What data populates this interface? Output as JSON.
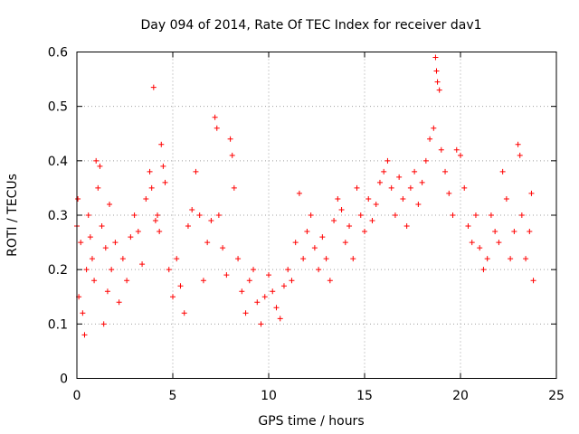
{
  "chart_data": {
    "type": "scatter",
    "title": "Day 094 of 2014, Rate Of TEC Index for receiver dav1",
    "xlabel": "GPS time / hours",
    "ylabel": "ROTI / TECUs",
    "xlim": [
      0,
      25
    ],
    "ylim": [
      0,
      0.6
    ],
    "xticks": [
      0,
      5,
      10,
      15,
      20,
      25
    ],
    "yticks": [
      0,
      0.1,
      0.2,
      0.3,
      0.4,
      0.5,
      0.6
    ],
    "xtick_labels": [
      "0",
      "5",
      "10",
      "15",
      "20",
      "25"
    ],
    "ytick_labels": [
      "0",
      "0.1",
      "0.2",
      "0.3",
      "0.4",
      "0.5",
      "0.6"
    ],
    "grid": true,
    "marker": "+",
    "series": [
      {
        "name": "dav1",
        "color": "#ff0000",
        "points": [
          [
            0.0,
            0.28
          ],
          [
            0.05,
            0.33
          ],
          [
            0.1,
            0.15
          ],
          [
            0.2,
            0.25
          ],
          [
            0.3,
            0.12
          ],
          [
            0.4,
            0.08
          ],
          [
            0.5,
            0.2
          ],
          [
            0.6,
            0.3
          ],
          [
            0.7,
            0.26
          ],
          [
            0.8,
            0.22
          ],
          [
            0.9,
            0.18
          ],
          [
            1.0,
            0.4
          ],
          [
            1.1,
            0.35
          ],
          [
            1.2,
            0.39
          ],
          [
            1.3,
            0.28
          ],
          [
            1.4,
            0.1
          ],
          [
            1.5,
            0.24
          ],
          [
            1.6,
            0.16
          ],
          [
            1.7,
            0.32
          ],
          [
            1.8,
            0.2
          ],
          [
            2.0,
            0.25
          ],
          [
            2.2,
            0.14
          ],
          [
            2.4,
            0.22
          ],
          [
            2.6,
            0.18
          ],
          [
            2.8,
            0.26
          ],
          [
            3.0,
            0.3
          ],
          [
            3.2,
            0.27
          ],
          [
            3.4,
            0.21
          ],
          [
            3.6,
            0.33
          ],
          [
            3.8,
            0.38
          ],
          [
            3.9,
            0.35
          ],
          [
            4.0,
            0.535
          ],
          [
            4.1,
            0.29
          ],
          [
            4.2,
            0.3
          ],
          [
            4.3,
            0.27
          ],
          [
            4.4,
            0.43
          ],
          [
            4.5,
            0.39
          ],
          [
            4.6,
            0.36
          ],
          [
            4.8,
            0.2
          ],
          [
            5.0,
            0.15
          ],
          [
            5.2,
            0.22
          ],
          [
            5.4,
            0.17
          ],
          [
            5.6,
            0.12
          ],
          [
            5.8,
            0.28
          ],
          [
            6.0,
            0.31
          ],
          [
            6.2,
            0.38
          ],
          [
            6.4,
            0.3
          ],
          [
            6.6,
            0.18
          ],
          [
            6.8,
            0.25
          ],
          [
            7.0,
            0.29
          ],
          [
            7.2,
            0.48
          ],
          [
            7.3,
            0.46
          ],
          [
            7.4,
            0.3
          ],
          [
            7.6,
            0.24
          ],
          [
            7.8,
            0.19
          ],
          [
            8.0,
            0.44
          ],
          [
            8.1,
            0.41
          ],
          [
            8.2,
            0.35
          ],
          [
            8.4,
            0.22
          ],
          [
            8.6,
            0.16
          ],
          [
            8.8,
            0.12
          ],
          [
            9.0,
            0.18
          ],
          [
            9.2,
            0.2
          ],
          [
            9.4,
            0.14
          ],
          [
            9.6,
            0.1
          ],
          [
            9.8,
            0.15
          ],
          [
            10.0,
            0.19
          ],
          [
            10.2,
            0.16
          ],
          [
            10.4,
            0.13
          ],
          [
            10.6,
            0.11
          ],
          [
            10.8,
            0.17
          ],
          [
            11.0,
            0.2
          ],
          [
            11.2,
            0.18
          ],
          [
            11.4,
            0.25
          ],
          [
            11.6,
            0.34
          ],
          [
            11.8,
            0.22
          ],
          [
            12.0,
            0.27
          ],
          [
            12.2,
            0.3
          ],
          [
            12.4,
            0.24
          ],
          [
            12.6,
            0.2
          ],
          [
            12.8,
            0.26
          ],
          [
            13.0,
            0.22
          ],
          [
            13.2,
            0.18
          ],
          [
            13.4,
            0.29
          ],
          [
            13.6,
            0.33
          ],
          [
            13.8,
            0.31
          ],
          [
            14.0,
            0.25
          ],
          [
            14.2,
            0.28
          ],
          [
            14.4,
            0.22
          ],
          [
            14.6,
            0.35
          ],
          [
            14.8,
            0.3
          ],
          [
            15.0,
            0.27
          ],
          [
            15.2,
            0.33
          ],
          [
            15.4,
            0.29
          ],
          [
            15.6,
            0.32
          ],
          [
            15.8,
            0.36
          ],
          [
            16.0,
            0.38
          ],
          [
            16.2,
            0.4
          ],
          [
            16.4,
            0.35
          ],
          [
            16.6,
            0.3
          ],
          [
            16.8,
            0.37
          ],
          [
            17.0,
            0.33
          ],
          [
            17.2,
            0.28
          ],
          [
            17.4,
            0.35
          ],
          [
            17.6,
            0.38
          ],
          [
            17.8,
            0.32
          ],
          [
            18.0,
            0.36
          ],
          [
            18.2,
            0.4
          ],
          [
            18.4,
            0.44
          ],
          [
            18.6,
            0.46
          ],
          [
            18.7,
            0.59
          ],
          [
            18.75,
            0.565
          ],
          [
            18.8,
            0.545
          ],
          [
            18.9,
            0.53
          ],
          [
            19.0,
            0.42
          ],
          [
            19.2,
            0.38
          ],
          [
            19.4,
            0.34
          ],
          [
            19.6,
            0.3
          ],
          [
            19.8,
            0.42
          ],
          [
            20.0,
            0.41
          ],
          [
            20.2,
            0.35
          ],
          [
            20.4,
            0.28
          ],
          [
            20.6,
            0.25
          ],
          [
            20.8,
            0.3
          ],
          [
            21.0,
            0.24
          ],
          [
            21.2,
            0.2
          ],
          [
            21.4,
            0.22
          ],
          [
            21.6,
            0.3
          ],
          [
            21.8,
            0.27
          ],
          [
            22.0,
            0.25
          ],
          [
            22.2,
            0.38
          ],
          [
            22.4,
            0.33
          ],
          [
            22.6,
            0.22
          ],
          [
            22.8,
            0.27
          ],
          [
            23.0,
            0.43
          ],
          [
            23.1,
            0.41
          ],
          [
            23.2,
            0.3
          ],
          [
            23.4,
            0.22
          ],
          [
            23.6,
            0.27
          ],
          [
            23.7,
            0.34
          ],
          [
            23.8,
            0.18
          ]
        ]
      }
    ]
  }
}
